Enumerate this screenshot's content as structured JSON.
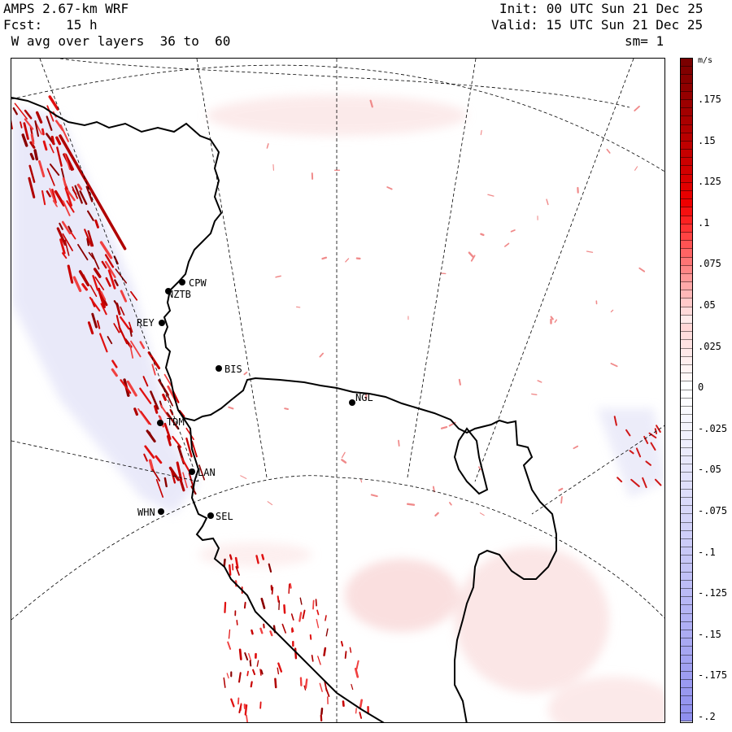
{
  "header": {
    "model": "AMPS 2.67-km WRF",
    "fcst": "Fcst:   15 h",
    "field": " W avg over layers  36 to  60",
    "init": "Init: 00 UTC Sun 21 Dec 25",
    "valid": "Valid: 15 UTC Sun 21 Dec 25",
    "smooth": "sm= 1"
  },
  "colorbar": {
    "units": "m/s",
    "labels": [
      ".175",
      ".15",
      ".125",
      ".1",
      ".075",
      ".05",
      ".025",
      "0",
      "-.025",
      "-.05",
      "-.075",
      "-.1",
      "-.125",
      "-.15",
      "-.175",
      "-.2"
    ],
    "max_color": "#7a0000",
    "zero_color": "#ffffff",
    "min_color": "#8f8fef"
  },
  "stations": [
    {
      "name": "CPW"
    },
    {
      "name": "NZTB"
    },
    {
      "name": "REY"
    },
    {
      "name": "BIS"
    },
    {
      "name": "NGL"
    },
    {
      "name": "TDM"
    },
    {
      "name": "LAN"
    },
    {
      "name": "WHN"
    },
    {
      "name": "SEL"
    }
  ]
}
